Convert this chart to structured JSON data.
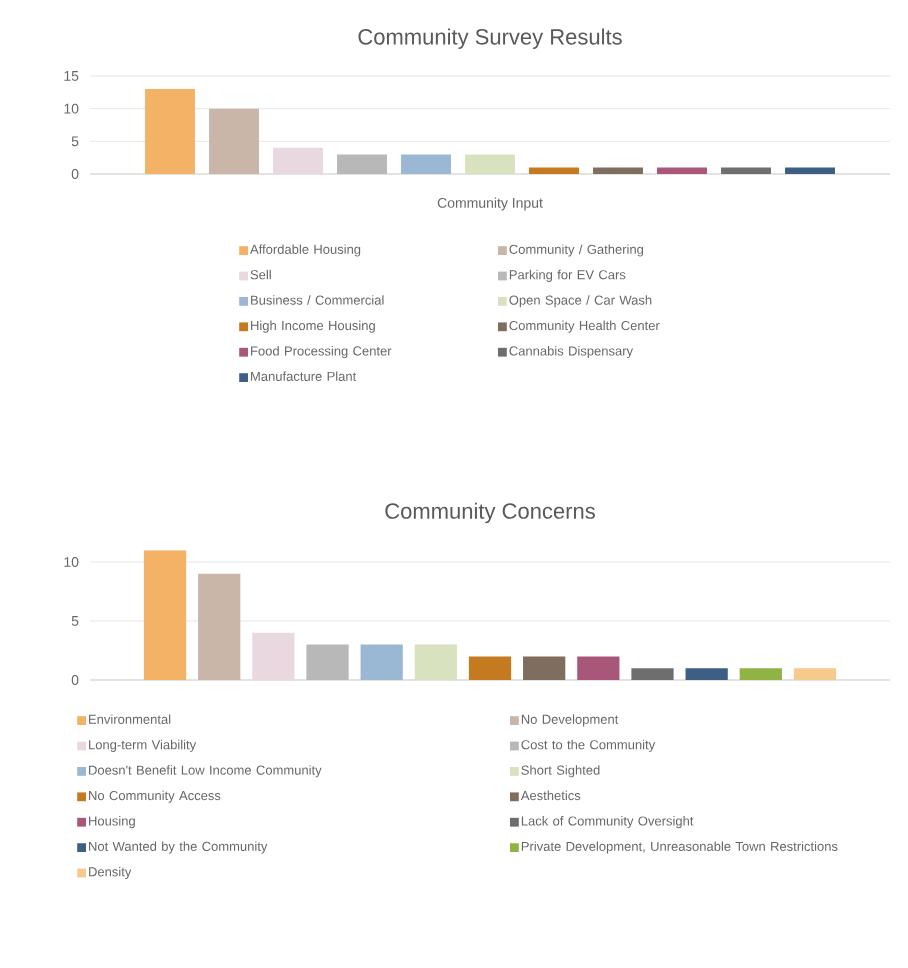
{
  "chart_data": [
    {
      "type": "bar",
      "title": "Community Survey Results",
      "categories": [
        "Community Input"
      ],
      "ylim": [
        0,
        15
      ],
      "yticks": [
        0,
        5,
        10,
        15
      ],
      "grid": "y",
      "legend": "bottom",
      "series": [
        {
          "name": "Affordable Housing",
          "color": "#f4b266",
          "values": [
            13
          ]
        },
        {
          "name": "Community / Gathering",
          "color": "#c9b6a8",
          "values": [
            10
          ]
        },
        {
          "name": "Sell",
          "color": "#ead8e0",
          "values": [
            4
          ]
        },
        {
          "name": "Parking for EV Cars",
          "color": "#b8b8b8",
          "values": [
            3
          ]
        },
        {
          "name": "Business / Commercial",
          "color": "#9ab8d4",
          "values": [
            3
          ]
        },
        {
          "name": "Open Space / Car Wash",
          "color": "#d9e2bf",
          "values": [
            3
          ]
        },
        {
          "name": "High Income Housing",
          "color": "#c47a1e",
          "values": [
            1
          ]
        },
        {
          "name": "Community Health Center",
          "color": "#7f6e5e",
          "values": [
            1
          ]
        },
        {
          "name": "Food Processing Center",
          "color": "#a8577a",
          "values": [
            1
          ]
        },
        {
          "name": "Cannabis Dispensary",
          "color": "#6e6e6e",
          "values": [
            1
          ]
        },
        {
          "name": "Manufacture Plant",
          "color": "#3e5f85",
          "values": [
            1
          ]
        }
      ]
    },
    {
      "type": "bar",
      "title": "Community Concerns",
      "categories": [
        null
      ],
      "ylim": [
        0,
        11
      ],
      "yticks": [
        0,
        5,
        10
      ],
      "grid": "y",
      "legend": "bottom",
      "series": [
        {
          "name": "Environmental",
          "color": "#f4b266",
          "values": [
            11
          ]
        },
        {
          "name": "No Development",
          "color": "#c9b6a8",
          "values": [
            9
          ]
        },
        {
          "name": "Long-term Viability",
          "color": "#ead8e0",
          "values": [
            4
          ]
        },
        {
          "name": "Cost to the Community",
          "color": "#b8b8b8",
          "values": [
            3
          ]
        },
        {
          "name": "Doesn't Benefit Low Income Community",
          "color": "#9ab8d4",
          "values": [
            3
          ]
        },
        {
          "name": "Short Sighted",
          "color": "#d9e2bf",
          "values": [
            3
          ]
        },
        {
          "name": "No Community Access",
          "color": "#c47a1e",
          "values": [
            2
          ]
        },
        {
          "name": "Aesthetics",
          "color": "#7f6e5e",
          "values": [
            2
          ]
        },
        {
          "name": "Housing",
          "color": "#a8577a",
          "values": [
            2
          ]
        },
        {
          "name": "Lack of Community Oversight",
          "color": "#6e6e6e",
          "values": [
            1
          ]
        },
        {
          "name": "Not Wanted by the Community",
          "color": "#3e5f85",
          "values": [
            1
          ]
        },
        {
          "name": "Private Development, Unreasonable Town Restrictions",
          "color": "#8fb345",
          "values": [
            1
          ]
        },
        {
          "name": "Density",
          "color": "#f7c98a",
          "values": [
            1
          ]
        }
      ]
    }
  ]
}
